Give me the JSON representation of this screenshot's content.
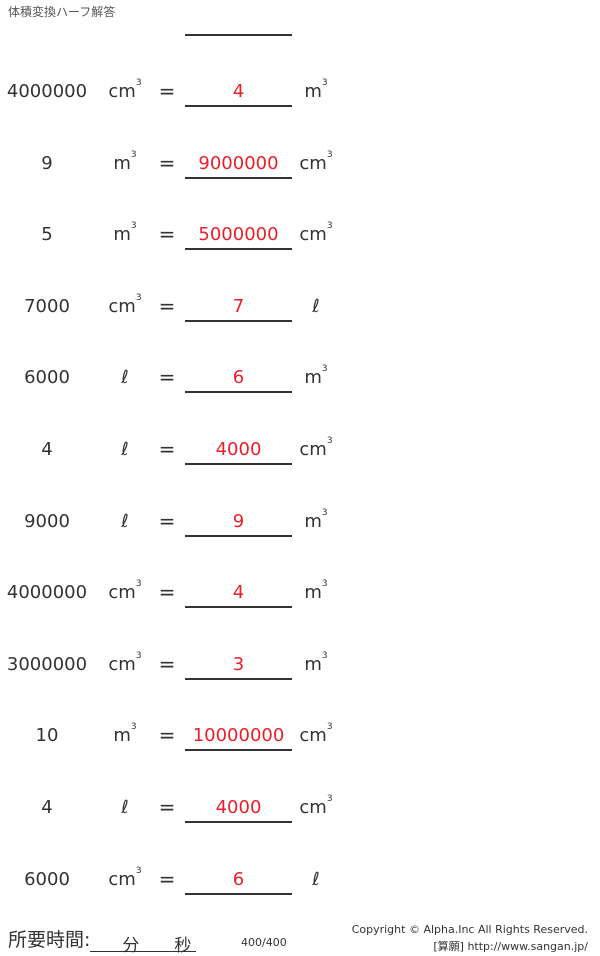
{
  "title": "体積変換ハーフ解答",
  "rows": [
    {
      "q": "4000000",
      "from": "cm",
      "fromSup": "3",
      "ans": "4",
      "to": "m",
      "toSup": "3"
    },
    {
      "q": "9",
      "from": "m",
      "fromSup": "3",
      "ans": "9000000",
      "to": "cm",
      "toSup": "3"
    },
    {
      "q": "5",
      "from": "m",
      "fromSup": "3",
      "ans": "5000000",
      "to": "cm",
      "toSup": "3"
    },
    {
      "q": "7000",
      "from": "cm",
      "fromSup": "3",
      "ans": "7",
      "to": "ℓ",
      "toSup": ""
    },
    {
      "q": "6000",
      "from": "ℓ",
      "fromSup": "",
      "ans": "6",
      "to": "m",
      "toSup": "3"
    },
    {
      "q": "4",
      "from": "ℓ",
      "fromSup": "",
      "ans": "4000",
      "to": "cm",
      "toSup": "3"
    },
    {
      "q": "9000",
      "from": "ℓ",
      "fromSup": "",
      "ans": "9",
      "to": "m",
      "toSup": "3"
    },
    {
      "q": "4000000",
      "from": "cm",
      "fromSup": "3",
      "ans": "4",
      "to": "m",
      "toSup": "3"
    },
    {
      "q": "3000000",
      "from": "cm",
      "fromSup": "3",
      "ans": "3",
      "to": "m",
      "toSup": "3"
    },
    {
      "q": "10",
      "from": "m",
      "fromSup": "3",
      "ans": "10000000",
      "to": "cm",
      "toSup": "3"
    },
    {
      "q": "4",
      "from": "ℓ",
      "fromSup": "",
      "ans": "4000",
      "to": "cm",
      "toSup": "3"
    },
    {
      "q": "6000",
      "from": "cm",
      "fromSup": "3",
      "ans": "6",
      "to": "ℓ",
      "toSup": ""
    }
  ],
  "equals": "=",
  "footer": {
    "time_label": "所要時間:",
    "minutes": "分",
    "seconds": "秒",
    "page": "400/400",
    "copyright": "Copyright © Alpha.Inc All Rights Reserved.",
    "site": "[算願] http://www.sangan.jp/"
  },
  "answer_color": "#e8202a"
}
